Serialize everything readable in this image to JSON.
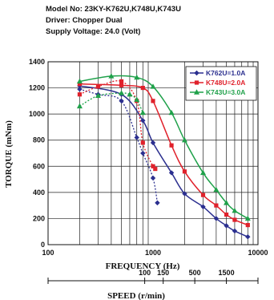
{
  "header": {
    "model": "Model No: 23KY-K762U,K748U,K743U",
    "driver": "Driver: Chopper Dual",
    "voltage": "Supply Voltage: 24.0 (Volt)"
  },
  "chart_data": {
    "type": "line",
    "xlabel": "FREQUENCY (Hz)",
    "ylabel": "TORQUE (mNm)",
    "xscale": "log",
    "xlim": [
      100,
      10000
    ],
    "ylim": [
      0,
      1400
    ],
    "x_tick_labels": [
      "100",
      "1000",
      "10000"
    ],
    "y_tick_labels": [
      "0",
      "200",
      "400",
      "600",
      "800",
      "1000",
      "1200",
      "1400"
    ],
    "secondary_axis": {
      "label": "SPEED (r/min)",
      "ticks": [
        {
          "label": "100",
          "freq": 833
        },
        {
          "label": "150",
          "freq": 1250
        },
        {
          "label": "500",
          "freq": 2500
        },
        {
          "label": "1500",
          "freq": 5000
        }
      ]
    },
    "legend_position": "top-right",
    "series": [
      {
        "name": "K762U=1.0A",
        "color": "#2b2f8f",
        "marker": "diamond",
        "solid": {
          "x": [
            200,
            500,
            800,
            1000,
            1500,
            2000,
            3000,
            4000,
            5000,
            6000,
            8000
          ],
          "y": [
            1215,
            1150,
            950,
            780,
            550,
            390,
            290,
            200,
            145,
            105,
            60
          ]
        },
        "dotted": {
          "x": [
            200,
            300,
            500,
            700,
            800,
            1000,
            1100
          ],
          "y": [
            1190,
            1150,
            1100,
            820,
            700,
            510,
            320
          ]
        }
      },
      {
        "name": "K748U=2.0A",
        "color": "#e0212b",
        "marker": "square",
        "solid": {
          "x": [
            200,
            500,
            800,
            1000,
            1500,
            2000,
            3000,
            4000,
            5000,
            6000,
            8000
          ],
          "y": [
            1230,
            1220,
            1200,
            1100,
            760,
            560,
            380,
            300,
            230,
            190,
            150
          ]
        },
        "dotted": {
          "x": [
            200,
            300,
            500,
            700,
            800,
            1000,
            1050
          ],
          "y": [
            1150,
            1210,
            1250,
            1100,
            780,
            600,
            580
          ]
        }
      },
      {
        "name": "K743U=3.0A",
        "color": "#1fa14a",
        "marker": "triangle",
        "solid": {
          "x": [
            200,
            400,
            700,
            1000,
            1500,
            2000,
            3000,
            4000,
            5000,
            6000,
            8000
          ],
          "y": [
            1250,
            1290,
            1280,
            1210,
            1010,
            800,
            550,
            420,
            320,
            260,
            200
          ]
        },
        "dotted": {
          "x": [
            200,
            300,
            500,
            600,
            700,
            800
          ],
          "y": [
            1060,
            1140,
            1160,
            1150,
            1110,
            1010
          ]
        }
      }
    ]
  }
}
